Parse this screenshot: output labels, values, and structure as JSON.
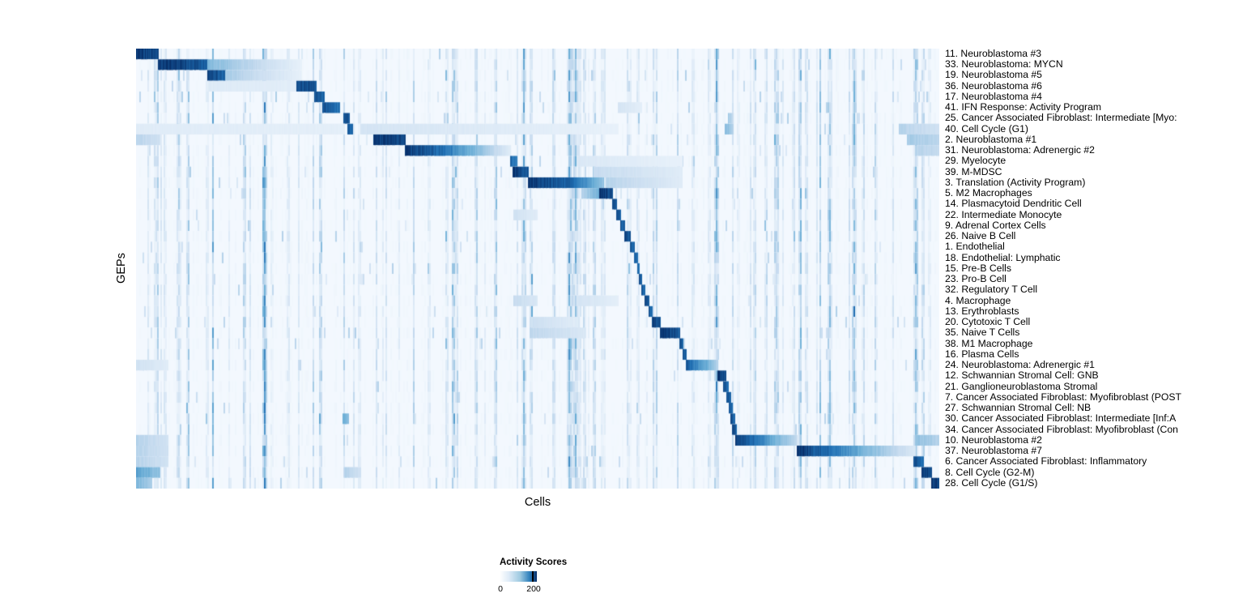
{
  "figure": {
    "y_axis_label": "GEPs",
    "x_axis_label": "Cells",
    "legend": {
      "title": "Activity Scores",
      "min_label": "0",
      "max_label": "200"
    }
  },
  "colors": {
    "background": "#ffffff",
    "heat_low": "#f7fbff",
    "heat_mid": "#6baed6",
    "heat_high": "#08306b",
    "colormap": "Blues (white to dark navy)"
  },
  "chart_data": {
    "type": "heatmap",
    "title": "",
    "xlabel": "Cells",
    "ylabel": "GEPs",
    "x_ticks": [],
    "colorbar": {
      "title": "Activity Scores",
      "min": 0,
      "max": 200,
      "colormap": "white-to-dark-blue"
    },
    "layout": "cells ordered by GEP assignment producing a diagonal staircase of dark activity blocks; segments are [startFrac, endFrac, intensityStart, intensityEnd] with intensity 0=white, 1=~200 (dark navy)",
    "rows": [
      {
        "label": "11. Neuroblastoma #3",
        "segments": [
          [
            0.0,
            0.028,
            1,
            0.9
          ]
        ]
      },
      {
        "label": "33. Neuroblastoma: MYCN",
        "segments": [
          [
            0.028,
            0.089,
            1,
            0.85
          ],
          [
            0.089,
            0.206,
            0.45,
            0.08
          ]
        ]
      },
      {
        "label": "19. Neuroblastoma #5",
        "segments": [
          [
            0.089,
            0.111,
            0.95,
            0.8
          ],
          [
            0.111,
            0.206,
            0.35,
            0.08
          ]
        ]
      },
      {
        "label": "36. Neuroblastoma #6",
        "segments": [
          [
            0.09,
            0.2,
            0.13,
            0.11
          ],
          [
            0.2,
            0.224,
            0.95,
            0.85
          ]
        ]
      },
      {
        "label": "17. Neuroblastoma #4",
        "segments": [
          [
            0.222,
            0.234,
            0.9,
            0.8
          ]
        ]
      },
      {
        "label": "41. IFN Response: Activity Program",
        "segments": [
          [
            0.232,
            0.254,
            0.9,
            0.75
          ],
          [
            0.6,
            0.63,
            0.18,
            0.1
          ]
        ]
      },
      {
        "label": "25. Cancer Associated Fibroblast: Intermediate [Myo:",
        "segments": [
          [
            0.259,
            0.266,
            0.9,
            0.85
          ],
          [
            0.737,
            0.743,
            0.35,
            0.25
          ]
        ]
      },
      {
        "label": "40. Cell Cycle (G1)",
        "segments": [
          [
            0.0,
            0.26,
            0.12,
            0.1
          ],
          [
            0.264,
            0.27,
            0.85,
            0.8
          ],
          [
            0.28,
            0.6,
            0.18,
            0.08
          ],
          [
            0.733,
            0.743,
            0.45,
            0.3
          ],
          [
            0.95,
            1.0,
            0.3,
            0.2
          ]
        ]
      },
      {
        "label": "2. Neuroblastoma #1",
        "segments": [
          [
            0.0,
            0.03,
            0.3,
            0.2
          ],
          [
            0.296,
            0.335,
            1,
            0.9
          ],
          [
            0.96,
            1.0,
            0.35,
            0.28
          ]
        ]
      },
      {
        "label": "31. Neuroblastoma: Adrenergic #2",
        "segments": [
          [
            0.335,
            0.395,
            1,
            0.7
          ],
          [
            0.395,
            0.466,
            0.65,
            0.12
          ],
          [
            0.97,
            1.0,
            0.3,
            0.25
          ]
        ]
      },
      {
        "label": "29. Myelocyte",
        "segments": [
          [
            0.466,
            0.474,
            0.8,
            0.7
          ],
          [
            0.55,
            0.68,
            0.15,
            0.08
          ]
        ]
      },
      {
        "label": "39. M-MDSC",
        "segments": [
          [
            0.469,
            0.488,
            1,
            0.85
          ],
          [
            0.57,
            0.68,
            0.25,
            0.12
          ]
        ]
      },
      {
        "label": "3. Translation (Activity Program)",
        "segments": [
          [
            0.488,
            0.546,
            1,
            0.8
          ],
          [
            0.546,
            0.582,
            0.75,
            0.4
          ],
          [
            0.585,
            0.68,
            0.3,
            0.12
          ]
        ]
      },
      {
        "label": "5. M2 Macrophages",
        "segments": [
          [
            0.555,
            0.577,
            0.3,
            0.5
          ],
          [
            0.577,
            0.593,
            1,
            0.9
          ]
        ]
      },
      {
        "label": "14. Plasmacytoid Dendritic Cell",
        "segments": [
          [
            0.593,
            0.598,
            0.95,
            0.85
          ]
        ]
      },
      {
        "label": "22. Intermediate Monocyte",
        "segments": [
          [
            0.47,
            0.5,
            0.2,
            0.12
          ],
          [
            0.598,
            0.603,
            0.95,
            0.85
          ]
        ]
      },
      {
        "label": "9. Adrenal Cortex Cells",
        "segments": [
          [
            0.603,
            0.608,
            0.9,
            0.8
          ]
        ]
      },
      {
        "label": "26. Naive B Cell",
        "segments": [
          [
            0.608,
            0.615,
            0.95,
            0.85
          ]
        ]
      },
      {
        "label": "1. Endothelial",
        "segments": [
          [
            0.615,
            0.62,
            0.9,
            0.8
          ]
        ]
      },
      {
        "label": "18. Endothelial: Lymphatic",
        "segments": [
          [
            0.62,
            0.624,
            0.85,
            0.75
          ]
        ]
      },
      {
        "label": "15. Pre-B Cells",
        "segments": [
          [
            0.624,
            0.627,
            0.85,
            0.75
          ]
        ]
      },
      {
        "label": "23. Pro-B Cell",
        "segments": [
          [
            0.627,
            0.63,
            0.85,
            0.75
          ]
        ]
      },
      {
        "label": "32. Regulatory T Cell",
        "segments": [
          [
            0.63,
            0.634,
            0.85,
            0.75
          ]
        ]
      },
      {
        "label": "4. Macrophage",
        "segments": [
          [
            0.47,
            0.5,
            0.25,
            0.15
          ],
          [
            0.55,
            0.6,
            0.18,
            0.1
          ],
          [
            0.634,
            0.639,
            0.9,
            0.8
          ]
        ]
      },
      {
        "label": "13. Erythroblasts",
        "segments": [
          [
            0.639,
            0.643,
            0.85,
            0.75
          ]
        ]
      },
      {
        "label": "20. Cytotoxic T Cell",
        "segments": [
          [
            0.49,
            0.55,
            0.22,
            0.12
          ],
          [
            0.643,
            0.653,
            0.95,
            0.85
          ]
        ]
      },
      {
        "label": "35. Naive T Cells",
        "segments": [
          [
            0.49,
            0.56,
            0.28,
            0.15
          ],
          [
            0.653,
            0.677,
            1,
            0.85
          ]
        ]
      },
      {
        "label": "38. M1 Macrophage",
        "segments": [
          [
            0.677,
            0.681,
            0.9,
            0.8
          ]
        ]
      },
      {
        "label": "16. Plasma Cells",
        "segments": [
          [
            0.681,
            0.685,
            0.9,
            0.8
          ]
        ]
      },
      {
        "label": "24. Neuroblastoma: Adrenergic #1",
        "segments": [
          [
            0.0,
            0.04,
            0.2,
            0.12
          ],
          [
            0.685,
            0.724,
            0.85,
            0.3
          ]
        ]
      },
      {
        "label": "12. Schwannian Stromal Cell: GNB",
        "segments": [
          [
            0.724,
            0.734,
            1,
            0.9
          ]
        ]
      },
      {
        "label": "21. Ganglioneuroblastoma Stromal",
        "segments": [
          [
            0.731,
            0.737,
            0.9,
            0.8
          ]
        ]
      },
      {
        "label": "7. Cancer Associated Fibroblast: Myofibroblast (POST",
        "segments": [
          [
            0.735,
            0.74,
            0.9,
            0.8
          ]
        ]
      },
      {
        "label": "27. Schwannian Stromal Cell: NB",
        "segments": [
          [
            0.738,
            0.742,
            0.9,
            0.8
          ]
        ]
      },
      {
        "label": "30. Cancer Associated Fibroblast: Intermediate [Inf:A",
        "segments": [
          [
            0.258,
            0.265,
            0.5,
            0.4
          ],
          [
            0.74,
            0.745,
            0.9,
            0.8
          ]
        ]
      },
      {
        "label": "34. Cancer Associated Fibroblast: Myofibroblast (Con",
        "segments": [
          [
            0.742,
            0.747,
            0.9,
            0.8
          ]
        ]
      },
      {
        "label": "10. Neuroblastoma #2",
        "segments": [
          [
            0.0,
            0.04,
            0.3,
            0.2
          ],
          [
            0.746,
            0.788,
            1,
            0.6
          ],
          [
            0.788,
            0.823,
            0.55,
            0.25
          ],
          [
            0.97,
            1.0,
            0.4,
            0.3
          ]
        ]
      },
      {
        "label": "37. Neuroblastoma #7",
        "segments": [
          [
            0.0,
            0.04,
            0.3,
            0.2
          ],
          [
            0.823,
            0.899,
            1,
            0.55
          ],
          [
            0.899,
            0.97,
            0.5,
            0.15
          ]
        ]
      },
      {
        "label": "6. Cancer Associated Fibroblast: Inflammatory",
        "segments": [
          [
            0.0,
            0.04,
            0.3,
            0.2
          ],
          [
            0.968,
            0.98,
            0.9,
            0.8
          ]
        ]
      },
      {
        "label": "8. Cell Cycle (G2-M)",
        "segments": [
          [
            0.0,
            0.03,
            0.55,
            0.4
          ],
          [
            0.26,
            0.28,
            0.3,
            0.2
          ],
          [
            0.978,
            0.99,
            1,
            0.9
          ]
        ]
      },
      {
        "label": "28. Cell Cycle (G1/S)",
        "segments": [
          [
            0.0,
            0.02,
            0.45,
            0.35
          ],
          [
            0.99,
            1.0,
            1,
            0.95
          ]
        ]
      }
    ]
  }
}
